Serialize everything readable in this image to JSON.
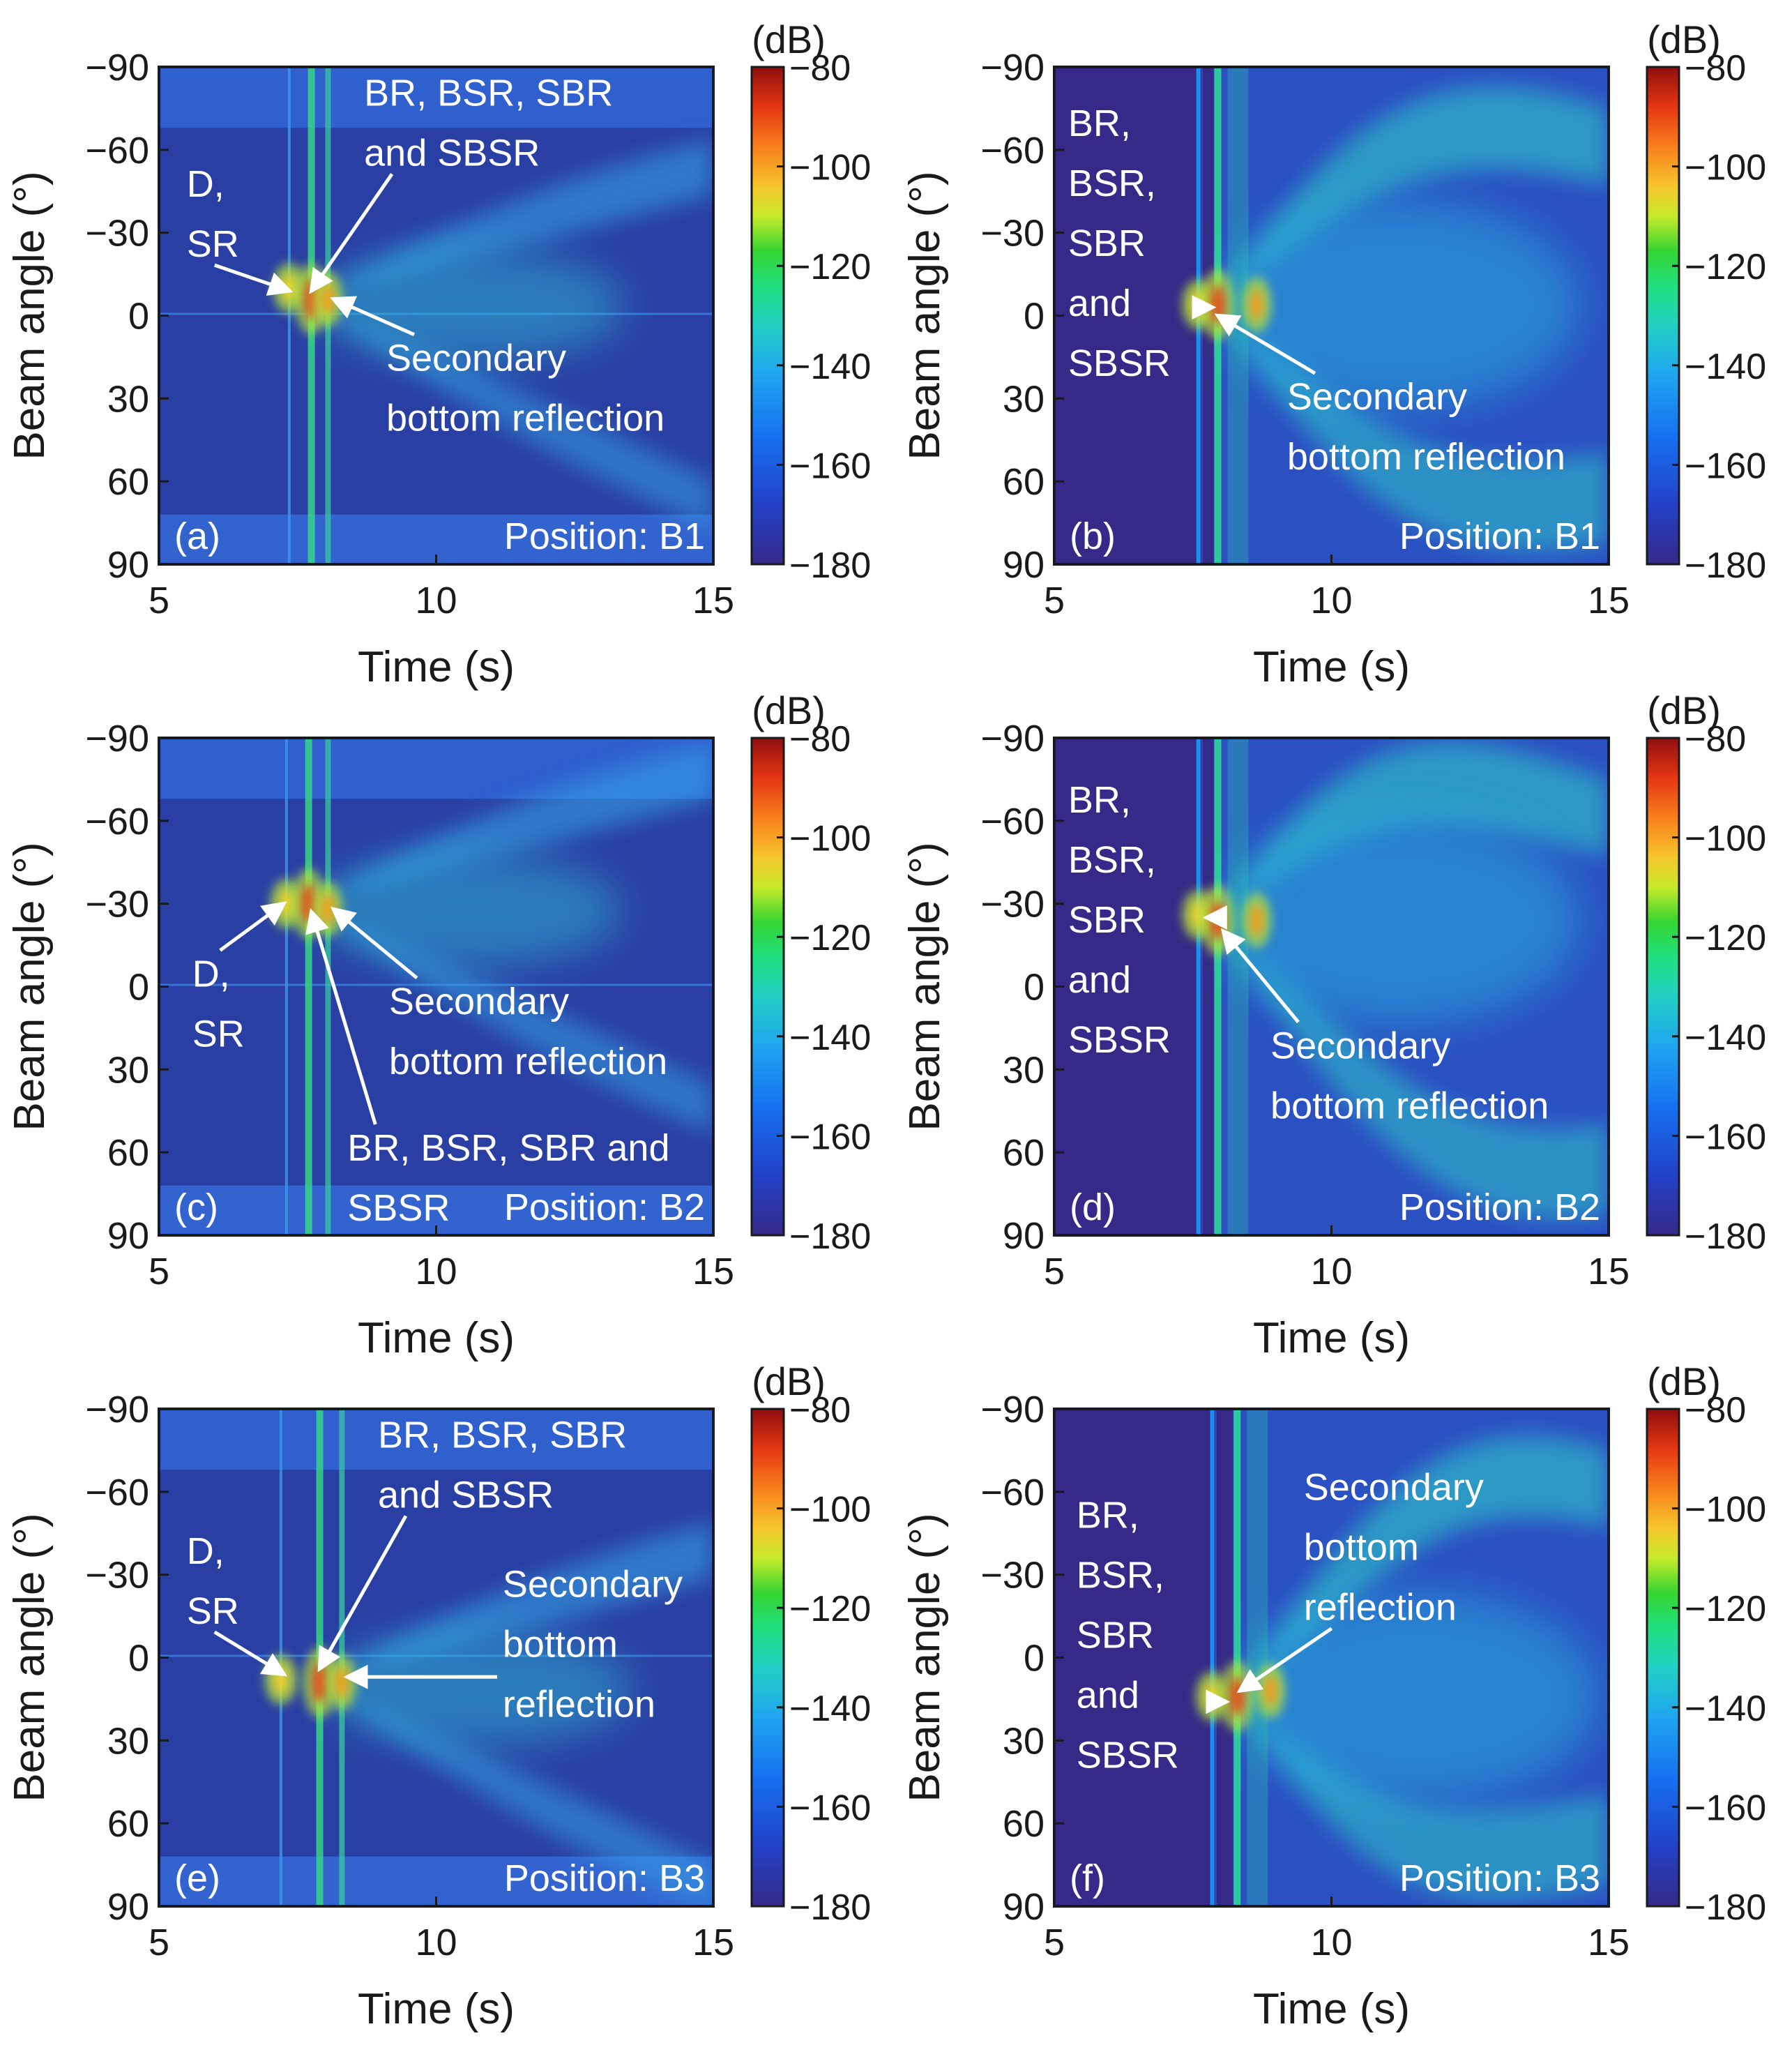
{
  "figure": {
    "panels_layout": "3 rows x 2 columns"
  },
  "chart_data": [
    {
      "id": "a",
      "type": "heatmap",
      "panel_label": "(a)",
      "position_text": "Position: B1",
      "style": "measured",
      "xlabel": "Time (s)",
      "ylabel": "Beam angle (°)",
      "xlim": [
        5,
        15
      ],
      "ylim": [
        -90,
        90
      ],
      "xticks": [
        5,
        10,
        15
      ],
      "xtick_labels": [
        "5",
        "10",
        "15"
      ],
      "yticks": [
        -90,
        -60,
        -30,
        0,
        30,
        60,
        90
      ],
      "ytick_labels": [
        "−90",
        "−60",
        "−30",
        "0",
        "30",
        "60",
        "90"
      ],
      "colorbar": {
        "unit": "(dB)",
        "range": [
          -180,
          -80
        ],
        "ticks": [
          -80,
          -100,
          -120,
          -140,
          -160,
          -180
        ],
        "tick_labels": [
          "−80",
          "−100",
          "−120",
          "−140",
          "−160",
          "−180"
        ]
      },
      "features": {
        "direct_time": 7.35,
        "direct_angle": -10,
        "bottom_time": 7.75,
        "bottom_angle": -6,
        "secondary_time": 8.05,
        "secondary_angle": -6,
        "background_band_angle": -68
      },
      "annotations": [
        {
          "lines": [
            "D,",
            "SR"
          ],
          "text_x": 5.5,
          "text_y": -43,
          "arrow_to": [
            7.35,
            -9
          ]
        },
        {
          "lines": [
            "BR, BSR, SBR",
            "and SBSR"
          ],
          "text_x": 8.7,
          "text_y": -76,
          "arrow_to": [
            7.75,
            -9
          ]
        },
        {
          "lines": [
            "Secondary",
            "bottom reflection"
          ],
          "text_x": 9.1,
          "text_y": 20,
          "arrow_to": [
            8.15,
            -6
          ]
        }
      ]
    },
    {
      "id": "b",
      "type": "heatmap",
      "panel_label": "(b)",
      "position_text": "Position: B1",
      "style": "model",
      "xlabel": "Time (s)",
      "ylabel": "Beam angle (°)",
      "xlim": [
        5,
        15
      ],
      "ylim": [
        -90,
        90
      ],
      "xticks": [
        5,
        10,
        15
      ],
      "xtick_labels": [
        "5",
        "10",
        "15"
      ],
      "yticks": [
        -90,
        -60,
        -30,
        0,
        30,
        60,
        90
      ],
      "ytick_labels": [
        "−90",
        "−60",
        "−30",
        "0",
        "30",
        "60",
        "90"
      ],
      "colorbar": {
        "unit": "(dB)",
        "range": [
          -180,
          -80
        ],
        "ticks": [
          -80,
          -100,
          -120,
          -140,
          -160,
          -180
        ],
        "tick_labels": [
          "−80",
          "−100",
          "−120",
          "−140",
          "−160",
          "−180"
        ]
      },
      "features": {
        "direct_time": 7.6,
        "direct_angle": -4,
        "bottom_time": 7.95,
        "bottom_angle": -4,
        "secondary_time": 8.65,
        "secondary_angle": -4,
        "background_band_angle": -90
      },
      "annotations": [
        {
          "lines": [
            "BR,",
            "BSR,",
            "SBR",
            "and",
            "SBSR"
          ],
          "text_x": 5.25,
          "text_y": -65,
          "arrow_to": [
            7.85,
            -3
          ]
        },
        {
          "lines": [
            "Secondary",
            "bottom reflection"
          ],
          "text_x": 9.2,
          "text_y": 34,
          "arrow_to": [
            7.95,
            0
          ]
        }
      ]
    },
    {
      "id": "c",
      "type": "heatmap",
      "panel_label": "(c)",
      "position_text": "Position: B2",
      "style": "measured",
      "xlabel": "Time (s)",
      "ylabel": "Beam angle (°)",
      "xlim": [
        5,
        15
      ],
      "ylim": [
        -90,
        90
      ],
      "xticks": [
        5,
        10,
        15
      ],
      "xtick_labels": [
        "5",
        "10",
        "15"
      ],
      "yticks": [
        -90,
        -60,
        -30,
        0,
        30,
        60,
        90
      ],
      "ytick_labels": [
        "−90",
        "−60",
        "−30",
        "0",
        "30",
        "60",
        "90"
      ],
      "colorbar": {
        "unit": "(dB)",
        "range": [
          -180,
          -80
        ],
        "ticks": [
          -80,
          -100,
          -120,
          -140,
          -160,
          -180
        ],
        "tick_labels": [
          "−80",
          "−100",
          "−120",
          "−140",
          "−160",
          "−180"
        ]
      },
      "features": {
        "direct_time": 7.3,
        "direct_angle": -30,
        "bottom_time": 7.7,
        "bottom_angle": -30,
        "secondary_time": 8.05,
        "secondary_angle": -28,
        "background_band_angle": -68
      },
      "annotations": [
        {
          "lines": [
            "D,",
            "SR"
          ],
          "text_x": 5.6,
          "text_y": 0,
          "arrow_to": [
            7.25,
            -30
          ]
        },
        {
          "lines": [
            "Secondary",
            "bottom reflection"
          ],
          "text_x": 9.15,
          "text_y": 10,
          "arrow_to": [
            8.15,
            -28
          ]
        },
        {
          "lines": [
            "BR, BSR, SBR and",
            "SBSR"
          ],
          "text_x": 8.4,
          "text_y": 63,
          "arrow_to": [
            7.75,
            -27
          ]
        }
      ]
    },
    {
      "id": "d",
      "type": "heatmap",
      "panel_label": "(d)",
      "position_text": "Position: B2",
      "style": "model",
      "xlabel": "Time (s)",
      "ylabel": "Beam angle (°)",
      "xlim": [
        5,
        15
      ],
      "ylim": [
        -90,
        90
      ],
      "xticks": [
        5,
        10,
        15
      ],
      "xtick_labels": [
        "5",
        "10",
        "15"
      ],
      "yticks": [
        -90,
        -60,
        -30,
        0,
        30,
        60,
        90
      ],
      "ytick_labels": [
        "−90",
        "−60",
        "−30",
        "0",
        "30",
        "60",
        "90"
      ],
      "colorbar": {
        "unit": "(dB)",
        "range": [
          -180,
          -80
        ],
        "ticks": [
          -80,
          -100,
          -120,
          -140,
          -160,
          -180
        ],
        "tick_labels": [
          "−80",
          "−100",
          "−120",
          "−140",
          "−160",
          "−180"
        ]
      },
      "features": {
        "direct_time": 7.6,
        "direct_angle": -26,
        "bottom_time": 7.95,
        "bottom_angle": -24,
        "secondary_time": 8.65,
        "secondary_angle": -24,
        "background_band_angle": -90
      },
      "annotations": [
        {
          "lines": [
            "BR,",
            "BSR,",
            "SBR",
            "and",
            "SBSR"
          ],
          "text_x": 5.25,
          "text_y": -63,
          "arrow_to": [
            7.75,
            -25
          ]
        },
        {
          "lines": [
            "Secondary",
            "bottom reflection"
          ],
          "text_x": 8.9,
          "text_y": 26,
          "arrow_to": [
            8.05,
            -20
          ]
        }
      ]
    },
    {
      "id": "e",
      "type": "heatmap",
      "panel_label": "(e)",
      "position_text": "Position: B3",
      "style": "measured",
      "xlabel": "Time (s)",
      "ylabel": "Beam angle (°)",
      "xlim": [
        5,
        15
      ],
      "ylim": [
        -90,
        90
      ],
      "xticks": [
        5,
        10,
        15
      ],
      "xtick_labels": [
        "5",
        "10",
        "15"
      ],
      "yticks": [
        -90,
        -60,
        -30,
        0,
        30,
        60,
        90
      ],
      "ytick_labels": [
        "−90",
        "−60",
        "−30",
        "0",
        "30",
        "60",
        "90"
      ],
      "colorbar": {
        "unit": "(dB)",
        "range": [
          -180,
          -80
        ],
        "ticks": [
          -80,
          -100,
          -120,
          -140,
          -160,
          -180
        ],
        "tick_labels": [
          "−80",
          "−100",
          "−120",
          "−140",
          "−160",
          "−180"
        ]
      },
      "features": {
        "direct_time": 7.2,
        "direct_angle": 8,
        "bottom_time": 7.9,
        "bottom_angle": 9,
        "secondary_time": 8.3,
        "secondary_angle": 9,
        "background_band_angle": -68
      },
      "annotations": [
        {
          "lines": [
            "D,",
            "SR"
          ],
          "text_x": 5.5,
          "text_y": -34,
          "arrow_to": [
            7.25,
            6
          ]
        },
        {
          "lines": [
            "BR, BSR, SBR",
            "and SBSR"
          ],
          "text_x": 8.95,
          "text_y": -76,
          "arrow_to": [
            7.9,
            4
          ]
        },
        {
          "lines": [
            "Secondary",
            "bottom",
            "reflection"
          ],
          "text_x": 11.2,
          "text_y": -22,
          "arrow_to": [
            8.4,
            7
          ]
        }
      ]
    },
    {
      "id": "f",
      "type": "heatmap",
      "panel_label": "(f)",
      "position_text": "Position: B3",
      "style": "model",
      "xlabel": "Time (s)",
      "ylabel": "Beam angle (°)",
      "xlim": [
        5,
        15
      ],
      "ylim": [
        -90,
        90
      ],
      "xticks": [
        5,
        10,
        15
      ],
      "xtick_labels": [
        "5",
        "10",
        "15"
      ],
      "yticks": [
        -90,
        -60,
        -30,
        0,
        30,
        60,
        90
      ],
      "ytick_labels": [
        "−90",
        "−60",
        "−30",
        "0",
        "30",
        "60",
        "90"
      ],
      "colorbar": {
        "unit": "(dB)",
        "range": [
          -180,
          -80
        ],
        "ticks": [
          -80,
          -100,
          -120,
          -140,
          -160,
          -180
        ],
        "tick_labels": [
          "−80",
          "−100",
          "−120",
          "−140",
          "−160",
          "−180"
        ]
      },
      "features": {
        "direct_time": 7.85,
        "direct_angle": 14,
        "bottom_time": 8.3,
        "bottom_angle": 14,
        "secondary_time": 8.9,
        "secondary_angle": 12,
        "background_band_angle": -90
      },
      "annotations": [
        {
          "lines": [
            "BR,",
            "BSR,",
            "SBR",
            "and",
            "SBSR"
          ],
          "text_x": 5.4,
          "text_y": -47,
          "arrow_to": [
            8.1,
            16
          ]
        },
        {
          "lines": [
            "Secondary",
            "bottom",
            "reflection"
          ],
          "text_x": 9.5,
          "text_y": -57,
          "arrow_to": [
            8.35,
            12
          ]
        }
      ]
    }
  ]
}
